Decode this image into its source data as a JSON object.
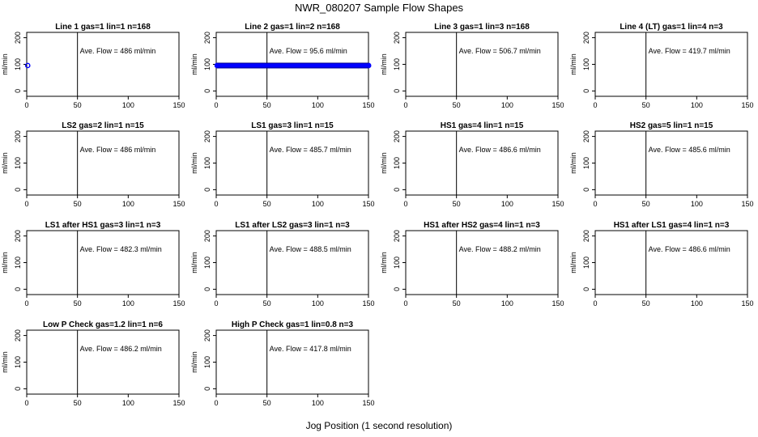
{
  "figure": {
    "title": "NWR_080207  Sample Flow Shapes",
    "xlabel": "Jog Position (1 second resolution)"
  },
  "chart_data": [
    {
      "type": "scatter",
      "title": "Line 1 gas=1 lin=1 n=168",
      "ylabel": "ml/min",
      "annotation": "Ave. Flow =  486  ml/min",
      "xlim": [
        0,
        150
      ],
      "ylim": [
        -20,
        220
      ],
      "xticks": [
        0,
        50,
        100,
        150
      ],
      "yticks": [
        0,
        100,
        200
      ],
      "vline": 50,
      "grid": false,
      "series": [
        {
          "points": [
            [
              1,
              95.6
            ]
          ],
          "color": "#0000ff",
          "style": "dot"
        }
      ]
    },
    {
      "type": "scatter",
      "title": "Line 2 gas=1 lin=2 n=168",
      "ylabel": "ml/min",
      "annotation": "Ave. Flow =  95.6  ml/min",
      "xlim": [
        0,
        150
      ],
      "ylim": [
        -20,
        220
      ],
      "xticks": [
        0,
        50,
        100,
        150
      ],
      "yticks": [
        0,
        100,
        200
      ],
      "vline": 50,
      "grid": false,
      "series": [
        {
          "points": [
            [
              1,
              95.6
            ],
            [
              150,
              95.6
            ]
          ],
          "color": "#0000ff",
          "style": "band"
        }
      ]
    },
    {
      "type": "scatter",
      "title": "Line 3 gas=1 lin=3 n=168",
      "ylabel": "ml/min",
      "annotation": "Ave. Flow =  506.7  ml/min",
      "xlim": [
        0,
        150
      ],
      "ylim": [
        -20,
        220
      ],
      "xticks": [
        0,
        50,
        100,
        150
      ],
      "yticks": [
        0,
        100,
        200
      ],
      "vline": 50,
      "grid": false,
      "series": []
    },
    {
      "type": "scatter",
      "title": "Line 4 (LT) gas=1 lin=4 n=3",
      "ylabel": "ml/min",
      "annotation": "Ave. Flow =  419.7  ml/min",
      "xlim": [
        0,
        150
      ],
      "ylim": [
        -20,
        220
      ],
      "xticks": [
        0,
        50,
        100,
        150
      ],
      "yticks": [
        0,
        100,
        200
      ],
      "vline": 50,
      "grid": false,
      "series": []
    },
    {
      "type": "scatter",
      "title": "LS2 gas=2 lin=1 n=15",
      "ylabel": "ml/min",
      "annotation": "Ave. Flow =  486  ml/min",
      "xlim": [
        0,
        150
      ],
      "ylim": [
        -20,
        220
      ],
      "xticks": [
        0,
        50,
        100,
        150
      ],
      "yticks": [
        0,
        100,
        200
      ],
      "vline": 50,
      "grid": false,
      "series": []
    },
    {
      "type": "scatter",
      "title": "LS1 gas=3 lin=1 n=15",
      "ylabel": "ml/min",
      "annotation": "Ave. Flow =  485.7  ml/min",
      "xlim": [
        0,
        150
      ],
      "ylim": [
        -20,
        220
      ],
      "xticks": [
        0,
        50,
        100,
        150
      ],
      "yticks": [
        0,
        100,
        200
      ],
      "vline": 50,
      "grid": false,
      "series": []
    },
    {
      "type": "scatter",
      "title": "HS1 gas=4 lin=1 n=15",
      "ylabel": "ml/min",
      "annotation": "Ave. Flow =  486.6  ml/min",
      "xlim": [
        0,
        150
      ],
      "ylim": [
        -20,
        220
      ],
      "xticks": [
        0,
        50,
        100,
        150
      ],
      "yticks": [
        0,
        100,
        200
      ],
      "vline": 50,
      "grid": false,
      "series": []
    },
    {
      "type": "scatter",
      "title": "HS2 gas=5 lin=1 n=15",
      "ylabel": "ml/min",
      "annotation": "Ave. Flow =  485.6  ml/min",
      "xlim": [
        0,
        150
      ],
      "ylim": [
        -20,
        220
      ],
      "xticks": [
        0,
        50,
        100,
        150
      ],
      "yticks": [
        0,
        100,
        200
      ],
      "vline": 50,
      "grid": false,
      "series": []
    },
    {
      "type": "scatter",
      "title": "LS1 after HS1 gas=3 lin=1 n=3",
      "ylabel": "ml/min",
      "annotation": "Ave. Flow =  482.3  ml/min",
      "xlim": [
        0,
        150
      ],
      "ylim": [
        -20,
        220
      ],
      "xticks": [
        0,
        50,
        100,
        150
      ],
      "yticks": [
        0,
        100,
        200
      ],
      "vline": 50,
      "grid": false,
      "series": []
    },
    {
      "type": "scatter",
      "title": "LS1 after LS2 gas=3 lin=1 n=3",
      "ylabel": "ml/min",
      "annotation": "Ave. Flow =  488.5  ml/min",
      "xlim": [
        0,
        150
      ],
      "ylim": [
        -20,
        220
      ],
      "xticks": [
        0,
        50,
        100,
        150
      ],
      "yticks": [
        0,
        100,
        200
      ],
      "vline": 50,
      "grid": false,
      "series": []
    },
    {
      "type": "scatter",
      "title": "HS1 after HS2 gas=4 lin=1 n=3",
      "ylabel": "ml/min",
      "annotation": "Ave. Flow =  488.2  ml/min",
      "xlim": [
        0,
        150
      ],
      "ylim": [
        -20,
        220
      ],
      "xticks": [
        0,
        50,
        100,
        150
      ],
      "yticks": [
        0,
        100,
        200
      ],
      "vline": 50,
      "grid": false,
      "series": []
    },
    {
      "type": "scatter",
      "title": "HS1 after LS1 gas=4 lin=1 n=3",
      "ylabel": "ml/min",
      "annotation": "Ave. Flow =  486.6  ml/min",
      "xlim": [
        0,
        150
      ],
      "ylim": [
        -20,
        220
      ],
      "xticks": [
        0,
        50,
        100,
        150
      ],
      "yticks": [
        0,
        100,
        200
      ],
      "vline": 50,
      "grid": false,
      "series": []
    },
    {
      "type": "scatter",
      "title": "Low P Check gas=1.2 lin=1 n=6",
      "ylabel": "ml/min",
      "annotation": "Ave. Flow =  486.2  ml/min",
      "xlim": [
        0,
        150
      ],
      "ylim": [
        -20,
        220
      ],
      "xticks": [
        0,
        50,
        100,
        150
      ],
      "yticks": [
        0,
        100,
        200
      ],
      "vline": 50,
      "grid": false,
      "series": []
    },
    {
      "type": "scatter",
      "title": "High P Check gas=1 lin=0.8 n=3",
      "ylabel": "ml/min",
      "annotation": "Ave. Flow =  417.8  ml/min",
      "xlim": [
        0,
        150
      ],
      "ylim": [
        -20,
        220
      ],
      "xticks": [
        0,
        50,
        100,
        150
      ],
      "yticks": [
        0,
        100,
        200
      ],
      "vline": 50,
      "grid": false,
      "series": []
    }
  ]
}
